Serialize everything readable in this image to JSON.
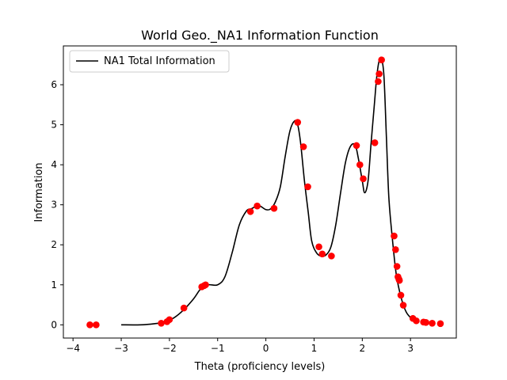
{
  "chart_data": {
    "type": "line",
    "title": "World Geo._NA1 Information Function",
    "xlabel": "Theta (proficiency levels)",
    "ylabel": "Information",
    "xlim": [
      -4.2,
      3.95
    ],
    "ylim": [
      -0.33,
      6.97
    ],
    "x_ticks": [
      -4,
      -3,
      -2,
      -1,
      0,
      1,
      2,
      3
    ],
    "x_tick_labels": [
      "−4",
      "−3",
      "−2",
      "−1",
      "0",
      "1",
      "2",
      "3"
    ],
    "y_ticks": [
      0,
      1,
      2,
      3,
      4,
      5,
      6
    ],
    "y_tick_labels": [
      "0",
      "1",
      "2",
      "3",
      "4",
      "5",
      "6"
    ],
    "grid": false,
    "legend_position": "top-left",
    "series": [
      {
        "name": "NA1 Total Information",
        "kind": "line",
        "color": "#000000",
        "x": [
          -3.0,
          -2.6,
          -2.3,
          -2.1,
          -1.9,
          -1.7,
          -1.5,
          -1.35,
          -1.2,
          -1.0,
          -0.85,
          -0.7,
          -0.55,
          -0.4,
          -0.3,
          -0.15,
          0.0,
          0.1,
          0.2,
          0.3,
          0.4,
          0.5,
          0.6,
          0.66,
          0.72,
          0.8,
          0.88,
          0.95,
          1.05,
          1.15,
          1.25,
          1.35,
          1.45,
          1.55,
          1.65,
          1.75,
          1.85,
          1.92,
          2.0,
          2.05,
          2.12,
          2.18,
          2.25,
          2.3,
          2.35,
          2.4,
          2.45,
          2.5,
          2.55,
          2.62,
          2.7,
          2.78,
          2.85,
          2.92,
          3.0
        ],
        "y": [
          0.0,
          0.0,
          0.03,
          0.07,
          0.18,
          0.38,
          0.65,
          0.9,
          1.0,
          1.0,
          1.2,
          1.8,
          2.5,
          2.85,
          2.9,
          2.98,
          2.88,
          2.9,
          3.08,
          3.45,
          4.2,
          4.85,
          5.1,
          5.0,
          4.55,
          3.6,
          2.8,
          2.1,
          1.8,
          1.72,
          1.75,
          1.95,
          2.5,
          3.3,
          4.05,
          4.45,
          4.5,
          4.15,
          3.6,
          3.3,
          3.6,
          4.5,
          5.5,
          6.2,
          6.6,
          6.65,
          6.2,
          4.7,
          3.2,
          2.2,
          1.3,
          0.8,
          0.5,
          0.3,
          0.18
        ]
      },
      {
        "name": "",
        "kind": "scatter",
        "color": "#ff0000",
        "x": [
          -3.65,
          -3.52,
          -2.17,
          -2.05,
          -2.0,
          -1.7,
          -1.33,
          -1.28,
          -1.25,
          -0.32,
          -0.18,
          0.17,
          0.66,
          0.78,
          0.87,
          1.1,
          1.17,
          1.36,
          1.88,
          1.95,
          2.02,
          2.26,
          2.33,
          2.35,
          2.4,
          2.66,
          2.69,
          2.72,
          2.74,
          2.76,
          2.77,
          2.8,
          2.85,
          3.05,
          3.12,
          3.27,
          3.32,
          3.45,
          3.62
        ],
        "y": [
          0.0,
          0.0,
          0.04,
          0.08,
          0.13,
          0.42,
          0.95,
          0.98,
          1.0,
          2.83,
          2.97,
          2.91,
          5.06,
          4.45,
          3.45,
          1.95,
          1.77,
          1.72,
          4.48,
          4.0,
          3.65,
          4.55,
          6.08,
          6.27,
          6.62,
          2.22,
          1.88,
          1.46,
          1.2,
          1.14,
          1.11,
          0.74,
          0.49,
          0.16,
          0.1,
          0.07,
          0.06,
          0.04,
          0.03
        ]
      }
    ]
  }
}
